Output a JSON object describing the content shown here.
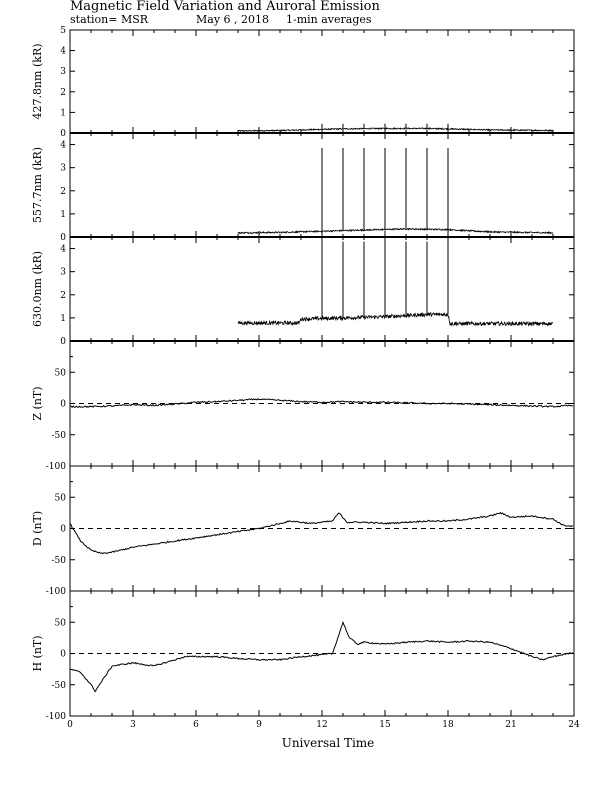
{
  "header": {
    "title": "Magnetic Field Variation and Auroral Emission",
    "station": "station= MSR",
    "date": "May 6  , 2018",
    "averaging": "1-min averages"
  },
  "chart_data": [
    {
      "type": "line",
      "ylabel": "427.8nm (kR)",
      "xlim": [
        0,
        24
      ],
      "ylim": [
        0,
        5
      ],
      "yticks": [
        0,
        1,
        2,
        3,
        4,
        5
      ],
      "data_window": [
        8,
        23
      ],
      "baseline": 0.12,
      "noise": 0.03,
      "spike_times": [
        12,
        13,
        14,
        15,
        16,
        17,
        18
      ],
      "spike_peak": 0.45,
      "series": [
        {
          "x": [
            8,
            10,
            11,
            13,
            15,
            17,
            18,
            20,
            23
          ],
          "y": [
            0.1,
            0.12,
            0.15,
            0.2,
            0.22,
            0.22,
            0.2,
            0.15,
            0.12
          ]
        }
      ]
    },
    {
      "type": "line",
      "ylabel": "557.7nm (kR)",
      "xlim": [
        0,
        24
      ],
      "ylim": [
        0,
        4.5
      ],
      "yticks": [
        0,
        1,
        2,
        3,
        4
      ],
      "data_window": [
        8,
        23
      ],
      "baseline": 0.2,
      "noise": 0.03,
      "spike_times": [
        12,
        13,
        14,
        15,
        16,
        17,
        18
      ],
      "spike_peak": 3.85,
      "series": [
        {
          "x": [
            8,
            10,
            12,
            14,
            16,
            18,
            20,
            23
          ],
          "y": [
            0.18,
            0.2,
            0.25,
            0.3,
            0.35,
            0.32,
            0.22,
            0.18
          ]
        }
      ]
    },
    {
      "type": "line",
      "ylabel": "630.0nm (kR)",
      "xlim": [
        0,
        24
      ],
      "ylim": [
        0,
        4.5
      ],
      "yticks": [
        0,
        1,
        2,
        3,
        4
      ],
      "data_window": [
        8,
        23
      ],
      "baseline": 0.8,
      "noise": 0.08,
      "spike_times": [
        12,
        13,
        14,
        15,
        16,
        17,
        18
      ],
      "spike_peak": 4.3,
      "series": [
        {
          "x": [
            8,
            10.9,
            11,
            13,
            15,
            17,
            18,
            18.1,
            23
          ],
          "y": [
            0.78,
            0.78,
            0.95,
            1.0,
            1.05,
            1.15,
            1.15,
            0.75,
            0.75
          ]
        }
      ]
    },
    {
      "type": "line",
      "ylabel": "Z (nT)",
      "xlim": [
        0,
        24
      ],
      "ylim": [
        -100,
        100
      ],
      "yticks": [
        -100,
        -50,
        0,
        50
      ],
      "reference_line": 0,
      "series": [
        {
          "x": [
            0,
            1,
            2,
            3,
            4,
            5,
            6,
            7,
            8,
            9,
            10,
            11,
            12,
            13,
            14,
            15,
            16,
            17,
            18,
            19,
            20,
            21,
            22,
            23,
            24
          ],
          "y": [
            -5,
            -5,
            -4,
            -2,
            -3,
            -1,
            2,
            3,
            5,
            7,
            5,
            3,
            2,
            3,
            2,
            2,
            1,
            0,
            0,
            -1,
            -2,
            -3,
            -4,
            -5,
            -3
          ]
        }
      ]
    },
    {
      "type": "line",
      "ylabel": "D (nT)",
      "xlim": [
        0,
        24
      ],
      "ylim": [
        -100,
        100
      ],
      "yticks": [
        -100,
        -50,
        0,
        50
      ],
      "reference_line": 0,
      "series": [
        {
          "x": [
            0,
            0.5,
            1,
            1.5,
            2,
            3,
            4,
            5,
            6,
            7,
            8,
            9,
            10,
            10.5,
            11,
            11.5,
            12,
            12.5,
            12.8,
            13.2,
            14,
            15,
            16,
            17,
            18,
            19,
            20,
            20.5,
            21,
            22,
            23,
            23.5,
            24
          ],
          "y": [
            8,
            -20,
            -35,
            -40,
            -38,
            -30,
            -25,
            -20,
            -15,
            -10,
            -5,
            0,
            8,
            12,
            10,
            8,
            10,
            12,
            25,
            10,
            10,
            8,
            10,
            12,
            12,
            15,
            20,
            25,
            18,
            20,
            15,
            5,
            3
          ]
        }
      ]
    },
    {
      "type": "line",
      "ylabel": "H (nT)",
      "xlim": [
        0,
        24
      ],
      "ylim": [
        -100,
        100
      ],
      "yticks": [
        -100,
        -50,
        0,
        50
      ],
      "reference_line": 0,
      "series": [
        {
          "x": [
            0,
            0.5,
            1,
            1.2,
            1.5,
            2,
            3,
            4,
            5,
            5.5,
            6,
            7,
            8,
            9,
            10,
            11,
            12,
            12.5,
            12.8,
            13,
            13.3,
            13.7,
            14,
            15,
            16,
            17,
            18,
            19,
            20,
            21,
            22,
            22.5,
            23,
            24
          ],
          "y": [
            -25,
            -30,
            -50,
            -60,
            -45,
            -20,
            -15,
            -20,
            -10,
            -5,
            -5,
            -5,
            -8,
            -10,
            -10,
            -5,
            -2,
            0,
            30,
            50,
            25,
            15,
            18,
            15,
            18,
            20,
            18,
            20,
            18,
            8,
            -5,
            -10,
            -5,
            2
          ]
        }
      ]
    }
  ],
  "x_axis": {
    "label": "Universal Time",
    "ticks": [
      0,
      3,
      6,
      9,
      12,
      15,
      18,
      21,
      24
    ]
  }
}
